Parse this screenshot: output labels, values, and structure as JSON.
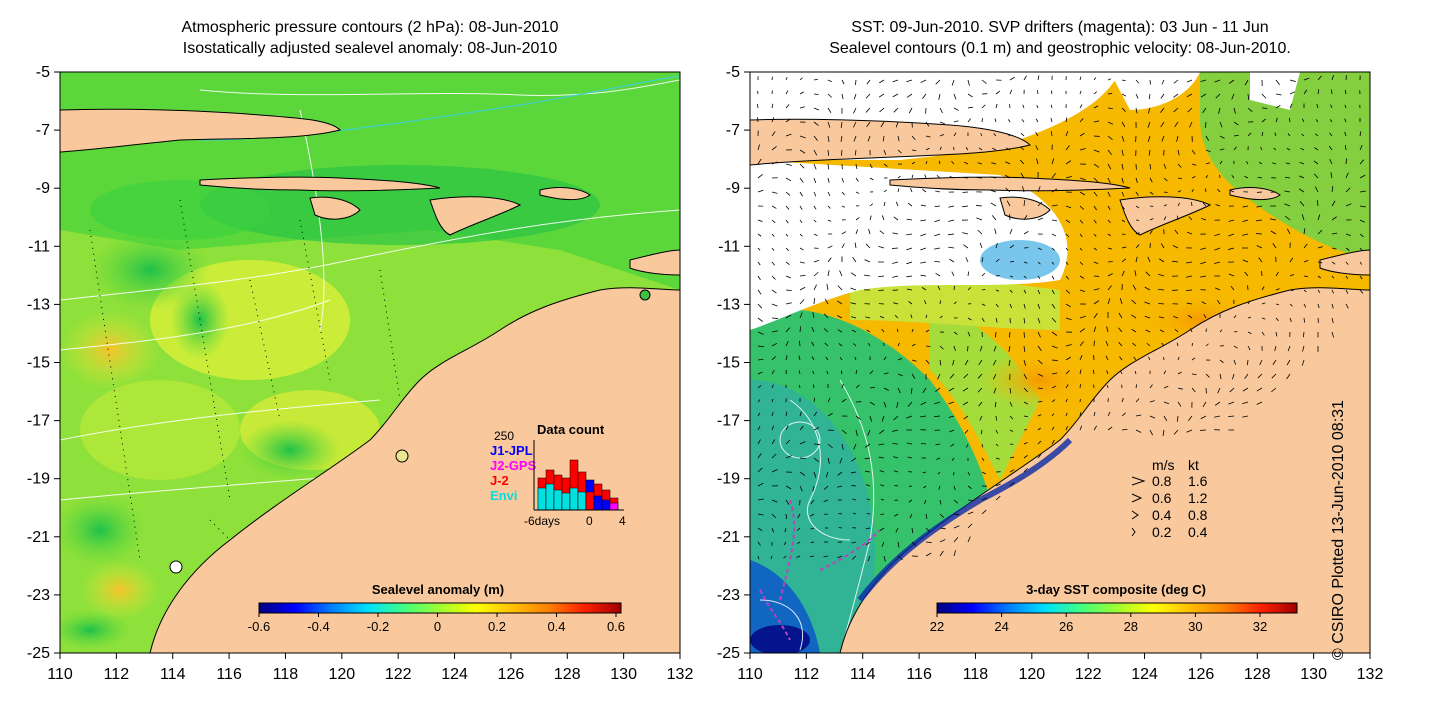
{
  "left_panel": {
    "title_line1": "Atmospheric pressure contours (2 hPa): 08-Jun-2010",
    "title_line2": "Isostatically adjusted sealevel anomaly: 08-Jun-2010",
    "colorbar": {
      "label": "Sealevel anomaly (m)",
      "ticks": [
        "-0.6",
        "-0.4",
        "-0.2",
        "0",
        "0.2",
        "0.4",
        "0.6"
      ],
      "colors": [
        "#00007f",
        "#0000ff",
        "#0080ff",
        "#00e0ff",
        "#40ff80",
        "#a0ff30",
        "#ffff00",
        "#ffc000",
        "#ff8000",
        "#ff2000",
        "#9f0000"
      ]
    },
    "inset": {
      "title": "Data count",
      "ymax_label": "250",
      "x_ticks": [
        "-6days",
        "0",
        "4"
      ],
      "legend": [
        {
          "label": "J1-JPL",
          "color": "#0000ff"
        },
        {
          "label": "J2-GPS",
          "color": "#ff00ff"
        },
        {
          "label": "J-2",
          "color": "#ff0000"
        },
        {
          "label": "Envi",
          "color": "#00e0e0"
        }
      ]
    }
  },
  "right_panel": {
    "title_line1": "SST: 09-Jun-2010. SVP drifters (magenta): 03 Jun - 11 Jun",
    "title_line2": "Sealevel contours (0.1 m) and geostrophic velocity: 08-Jun-2010.",
    "colorbar": {
      "label": "3-day SST composite (deg C)",
      "ticks": [
        "22",
        "24",
        "26",
        "28",
        "30",
        "32"
      ],
      "colors": [
        "#00007f",
        "#0000ff",
        "#0080ff",
        "#00e0ff",
        "#40ff80",
        "#a0ff30",
        "#ffff00",
        "#ffc000",
        "#ff8000",
        "#ff2000",
        "#9f0000"
      ]
    },
    "velocity_legend": {
      "header_ms": "m/s",
      "header_kt": "kt",
      "rows": [
        {
          "ms": "0.8",
          "kt": "1.6"
        },
        {
          "ms": "0.6",
          "kt": "1.2"
        },
        {
          "ms": "0.4",
          "kt": "0.8"
        },
        {
          "ms": "0.2",
          "kt": "0.4"
        }
      ]
    }
  },
  "axes": {
    "y_ticks": [
      "-5",
      "-7",
      "-9",
      "-11",
      "-13",
      "-15",
      "-17",
      "-19",
      "-21",
      "-23",
      "-25"
    ],
    "x_ticks": [
      "110",
      "112",
      "114",
      "116",
      "118",
      "120",
      "122",
      "124",
      "126",
      "128",
      "130",
      "132"
    ]
  },
  "copyright": "© CSIRO Plotted 13-Jun-2010 08:31",
  "colors": {
    "land": "#f9c99d",
    "ocean_green": "#7de23c",
    "ocean_yellow": "#cdf23a",
    "sst_orange": "#f7a600",
    "cloud": "#ffffff"
  }
}
